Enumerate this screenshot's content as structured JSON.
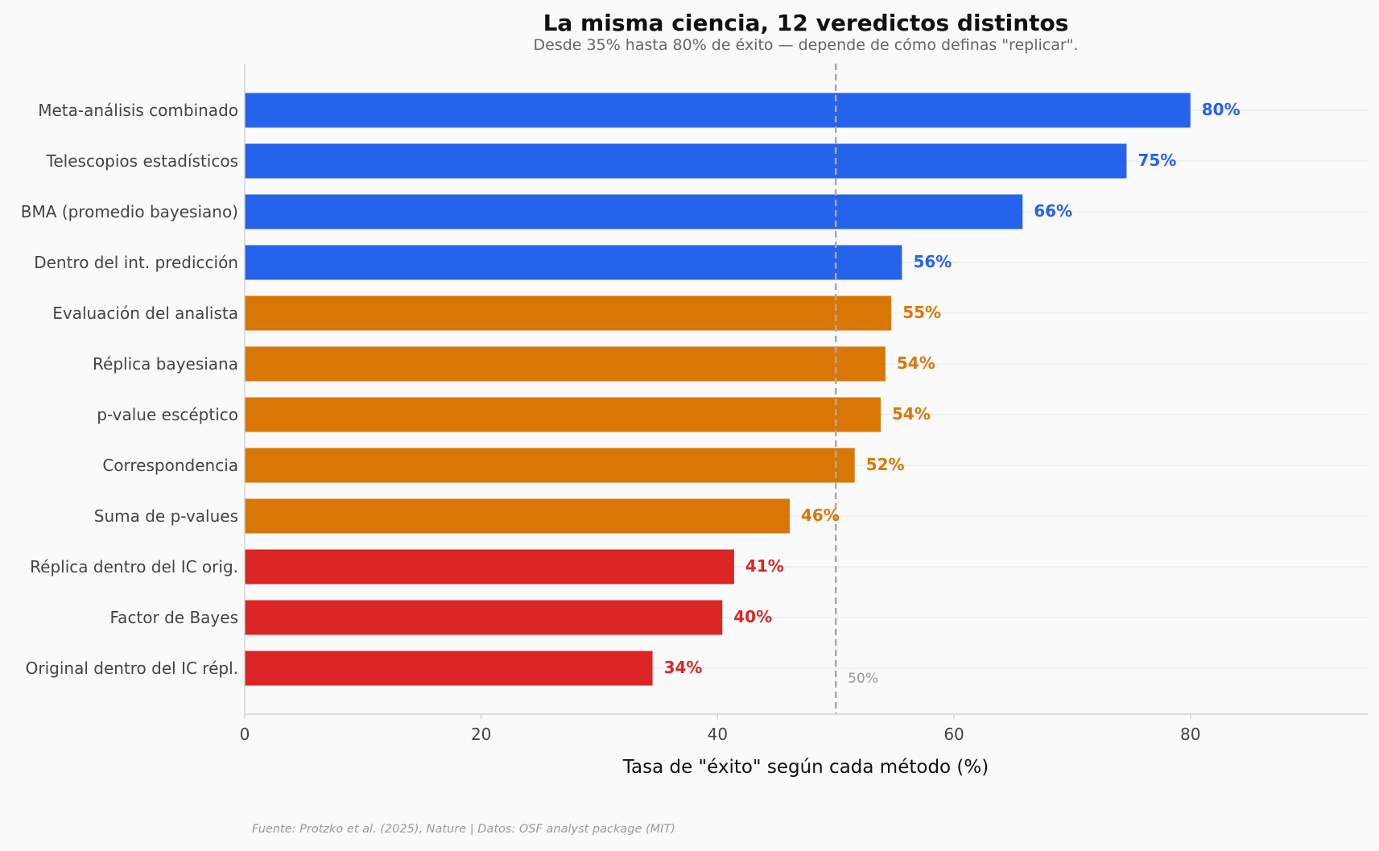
{
  "chart_data": {
    "type": "bar",
    "orientation": "horizontal",
    "title": "La misma ciencia, 12 veredictos distintos",
    "subtitle": "Desde 35% hasta 80% de éxito — depende de cómo definas \"replicar\".",
    "xlabel": "Tasa de \"éxito\" según cada método (%)",
    "ylabel": "",
    "xlim": [
      0,
      95
    ],
    "xticks": [
      0,
      20,
      40,
      60,
      80
    ],
    "grid": "horizontal-faint",
    "categories": [
      "Meta-análisis combinado",
      "Telescopios estadísticos",
      "BMA (promedio bayesiano)",
      "Dentro del int. predicción",
      "Evaluación del analista",
      "Réplica bayesiana",
      "p-value escéptico",
      "Correspondencia",
      "Suma de p-values",
      "Réplica dentro del IC orig.",
      "Factor de Bayes",
      "Original dentro del IC répl."
    ],
    "values": [
      80,
      74.6,
      65.8,
      55.6,
      54.7,
      54.2,
      53.8,
      51.6,
      46.1,
      41.4,
      40.4,
      34.5
    ],
    "value_labels": [
      "80%",
      "75%",
      "66%",
      "56%",
      "55%",
      "54%",
      "54%",
      "52%",
      "46%",
      "41%",
      "40%",
      "34%"
    ],
    "bar_colors": [
      "#2563eb",
      "#2563eb",
      "#2563eb",
      "#2563eb",
      "#d97706",
      "#d97706",
      "#d97706",
      "#d97706",
      "#d97706",
      "#dc2626",
      "#dc2626",
      "#dc2626"
    ],
    "reference_line": {
      "x": 50,
      "label": "50%",
      "style": "dashed",
      "color": "#aaaaaa"
    },
    "footnote": "Fuente: Protzko et al. (2025), Nature | Datos: OSF analyst package (MIT)"
  }
}
